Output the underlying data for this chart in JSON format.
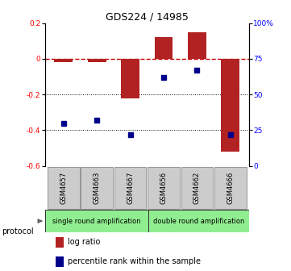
{
  "title": "GDS224 / 14985",
  "samples": [
    "GSM4657",
    "GSM4663",
    "GSM4667",
    "GSM4656",
    "GSM4662",
    "GSM4666"
  ],
  "log_ratios": [
    -0.02,
    -0.02,
    -0.22,
    0.12,
    0.15,
    -0.52
  ],
  "percentile_ranks": [
    30,
    32,
    22,
    62,
    67,
    22
  ],
  "ylim_left": [
    -0.6,
    0.2
  ],
  "ylim_right": [
    0,
    100
  ],
  "bar_color": "#b22222",
  "dot_color": "#00008b",
  "dashed_color": "#cc0000",
  "group1_label": "single round amplification",
  "group2_label": "double round amplification",
  "group_bg_color": "#90ee90",
  "legend_bar_label": "log ratio",
  "legend_dot_label": "percentile rank within the sample",
  "protocol_label": "protocol",
  "yticks_left": [
    -0.6,
    -0.4,
    -0.2,
    0.0,
    0.2
  ],
  "yticks_right": [
    0,
    25,
    50,
    75,
    100
  ],
  "sample_box_color": "#cccccc",
  "bar_width": 0.55
}
